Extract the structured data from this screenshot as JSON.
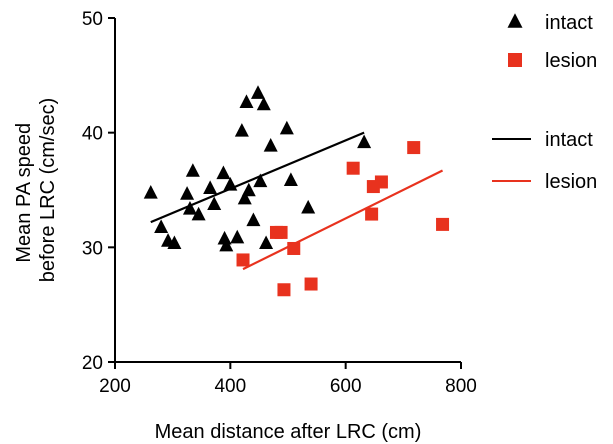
{
  "chart_data": {
    "type": "scatter",
    "title": "",
    "xlabel": "Mean distance after LRC (cm)",
    "ylabel_lines": [
      "Mean PA speed",
      "before LRC (cm/sec)"
    ],
    "xlim": [
      200,
      800
    ],
    "ylim": [
      20,
      50
    ],
    "xticks": [
      200,
      400,
      600,
      800
    ],
    "yticks": [
      20,
      30,
      40,
      50
    ],
    "grid": false,
    "legend_position": "right",
    "series": [
      {
        "name": "intact",
        "marker": "triangle",
        "color": "#000000",
        "points": [
          [
            262,
            34.8
          ],
          [
            280,
            31.8
          ],
          [
            292,
            30.6
          ],
          [
            303,
            30.4
          ],
          [
            325,
            34.7
          ],
          [
            330,
            33.4
          ],
          [
            335,
            36.7
          ],
          [
            345,
            32.9
          ],
          [
            365,
            35.2
          ],
          [
            372,
            33.8
          ],
          [
            388,
            36.5
          ],
          [
            390,
            30.8
          ],
          [
            393,
            30.2
          ],
          [
            400,
            35.5
          ],
          [
            412,
            30.9
          ],
          [
            420,
            40.2
          ],
          [
            425,
            34.3
          ],
          [
            428,
            42.7
          ],
          [
            432,
            35.0
          ],
          [
            440,
            32.4
          ],
          [
            448,
            43.5
          ],
          [
            452,
            35.8
          ],
          [
            458,
            42.5
          ],
          [
            462,
            30.4
          ],
          [
            470,
            38.9
          ],
          [
            498,
            40.4
          ],
          [
            505,
            35.9
          ],
          [
            535,
            33.5
          ],
          [
            632,
            39.2
          ]
        ]
      },
      {
        "name": "lesion",
        "marker": "square",
        "color": "#e8321e",
        "points": [
          [
            422,
            28.9
          ],
          [
            480,
            31.3
          ],
          [
            488,
            31.3
          ],
          [
            493,
            26.3
          ],
          [
            510,
            29.9
          ],
          [
            540,
            26.8
          ],
          [
            613,
            36.9
          ],
          [
            645,
            32.9
          ],
          [
            648,
            35.3
          ],
          [
            662,
            35.7
          ],
          [
            718,
            38.7
          ],
          [
            768,
            32.0
          ]
        ]
      }
    ],
    "fit_lines": [
      {
        "name": "intact",
        "color": "#000000",
        "x": [
          262,
          632
        ],
        "y": [
          32.2,
          40.0
        ]
      },
      {
        "name": "lesion",
        "color": "#e8321e",
        "x": [
          422,
          768
        ],
        "y": [
          28.1,
          36.7
        ]
      }
    ]
  }
}
